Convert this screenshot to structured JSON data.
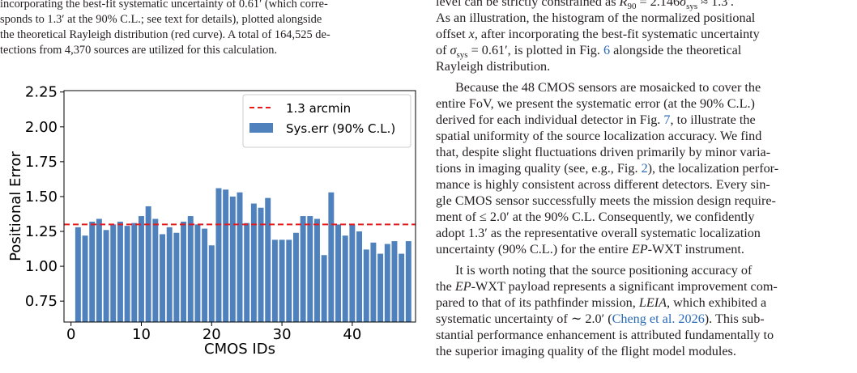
{
  "caption": {
    "lines": [
      "incorporating the best-fit systematic uncertainty of 0.61′ (which corre-",
      "sponds to 1.3′ at the 90% C.L.; see text for details), plotted alongside",
      "the theoretical Rayleigh distribution (red curve). A total of 164,525 de-",
      "tections from 4,370 sources are utilized for this calculation."
    ]
  },
  "body_text": {
    "lines": [
      [
        {
          "t": "level can be strictly constrained as "
        },
        {
          "t": "R",
          "i": true
        },
        {
          "t": "90",
          "sub": true
        },
        {
          "t": " = 2.146"
        },
        {
          "t": "σ",
          "i": true
        },
        {
          "t": "sys",
          "sub": true
        },
        {
          "t": " ≈ 1.3′."
        }
      ],
      [
        {
          "t": "As an illustration, the histogram of the normalized positional"
        }
      ],
      [
        {
          "t": "offset "
        },
        {
          "t": "x",
          "i": true
        },
        {
          "t": ", after incorporating the best-fit systematic uncertainty"
        }
      ],
      [
        {
          "t": "of "
        },
        {
          "t": "σ",
          "i": true
        },
        {
          "t": "sys",
          "sub": true
        },
        {
          "t": " = 0.61′, is plotted in Fig. "
        },
        {
          "t": "6",
          "l": true
        },
        {
          "t": " alongside the theoretical"
        }
      ],
      [
        {
          "t": "Rayleigh distribution."
        }
      ],
      [
        {
          "t": "Because the 48 CMOS sensors are mosaicked to cover the"
        }
      ],
      [
        {
          "t": "entire FoV, we present the systematic error (at the 90% C.L.)"
        }
      ],
      [
        {
          "t": "derived for each individual detector in Fig. "
        },
        {
          "t": "7",
          "l": true
        },
        {
          "t": ", to illustrate the"
        }
      ],
      [
        {
          "t": "spatial uniformity of the source localization accuracy. We find"
        }
      ],
      [
        {
          "t": "that, despite slight fluctuations driven primarily by minor varia-"
        }
      ],
      [
        {
          "t": "tions in imaging quality (see, e.g., Fig. "
        },
        {
          "t": "2",
          "l": true
        },
        {
          "t": "), the localization perfor-"
        }
      ],
      [
        {
          "t": "mance is highly consistent across different detectors. Every sin-"
        }
      ],
      [
        {
          "t": "gle CMOS sensor successfully meets the mission design require-"
        }
      ],
      [
        {
          "t": "ment of ≤ 2.0′ at the 90% C.L. Consequently, we confidently"
        }
      ],
      [
        {
          "t": "adopt 1.3′ as the representative overall systematic localization"
        }
      ],
      [
        {
          "t": "uncertainty (90% C.L.) for the entire "
        },
        {
          "t": "EP",
          "i": true
        },
        {
          "t": "-WXT instrument."
        }
      ],
      [
        {
          "t": "It is worth noting that the source positioning accuracy of"
        }
      ],
      [
        {
          "t": "the "
        },
        {
          "t": "EP",
          "i": true
        },
        {
          "t": "-WXT payload represents a significant improvement com-"
        }
      ],
      [
        {
          "t": "pared to that of its pathfinder mission, "
        },
        {
          "t": "LEIA",
          "i": true
        },
        {
          "t": ", which exhibited a"
        }
      ],
      [
        {
          "t": "systematic uncertainty of ∼ 2.0′ ("
        },
        {
          "t": "Cheng et al. 2026",
          "l": true
        },
        {
          "t": "). This sub-"
        }
      ],
      [
        {
          "t": "stantial performance enhancement is attributed fundamentally to"
        }
      ],
      [
        {
          "t": "the superior imaging quality of the flight model modules."
        }
      ]
    ]
  },
  "chart_data": {
    "type": "bar",
    "xlabel": "CMOS IDs",
    "ylabel": "Positional Error",
    "xlim": [
      -1,
      49
    ],
    "ylim": [
      0.6,
      2.26
    ],
    "xticks": [
      0,
      10,
      20,
      30,
      40
    ],
    "yticks": [
      0.75,
      1.0,
      1.25,
      1.5,
      1.75,
      2.0,
      2.25
    ],
    "ytick_labels": [
      "0.75",
      "1.00",
      "1.25",
      "1.50",
      "1.75",
      "2.00",
      "2.25"
    ],
    "hline": {
      "y": 1.3,
      "label": "1.3 arcmin",
      "color": "#e41a1c",
      "style": "dashed"
    },
    "series": [
      {
        "name": "Sys.err (90% C.L.)",
        "color": "#4f81bd",
        "x": [
          1,
          2,
          3,
          4,
          5,
          6,
          7,
          8,
          9,
          10,
          11,
          12,
          13,
          14,
          15,
          16,
          17,
          18,
          19,
          20,
          21,
          22,
          23,
          24,
          25,
          26,
          27,
          28,
          29,
          30,
          31,
          32,
          33,
          34,
          35,
          36,
          37,
          38,
          39,
          40,
          41,
          42,
          43,
          44,
          45,
          46,
          47,
          48
        ],
        "values": [
          1.28,
          1.22,
          1.32,
          1.34,
          1.26,
          1.3,
          1.32,
          1.29,
          1.31,
          1.36,
          1.43,
          1.34,
          1.23,
          1.28,
          1.24,
          1.32,
          1.36,
          1.3,
          1.27,
          1.15,
          1.56,
          1.55,
          1.5,
          1.53,
          1.31,
          1.45,
          1.42,
          1.49,
          1.19,
          1.19,
          1.19,
          1.24,
          1.36,
          1.36,
          1.34,
          1.08,
          1.53,
          1.3,
          1.22,
          1.3,
          1.25,
          1.12,
          1.17,
          1.09,
          1.16,
          1.18,
          1.09,
          1.18
        ]
      }
    ],
    "legend": {
      "position": "top-right"
    }
  }
}
